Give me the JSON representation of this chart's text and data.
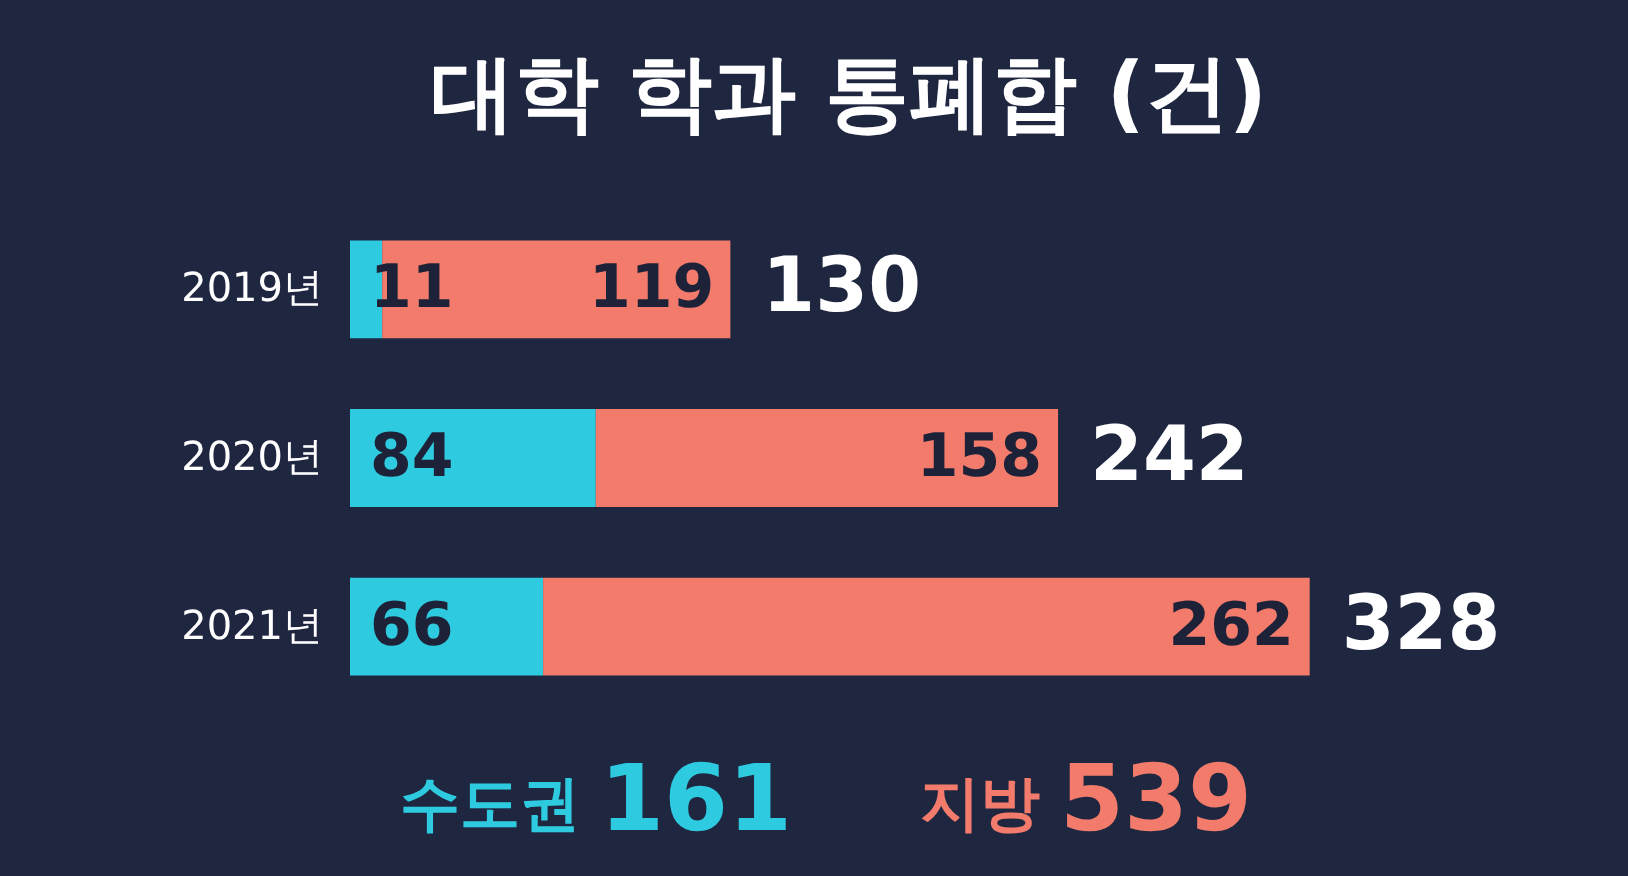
{
  "chart_data": {
    "type": "bar",
    "orientation": "horizontal",
    "stacked": true,
    "title": "대학 학과 통폐합 (건)",
    "categories": [
      "2019년",
      "2020년",
      "2021년"
    ],
    "series": [
      {
        "name": "수도권",
        "color": "#2ecbe0",
        "values": [
          11,
          84,
          66
        ]
      },
      {
        "name": "지방",
        "color": "#f27b6b",
        "values": [
          119,
          158,
          262
        ]
      }
    ],
    "data_labels": true,
    "totals": [
      "130",
      "242",
      "328"
    ],
    "annotations": [
      "161",
      "539"
    ]
  }
}
